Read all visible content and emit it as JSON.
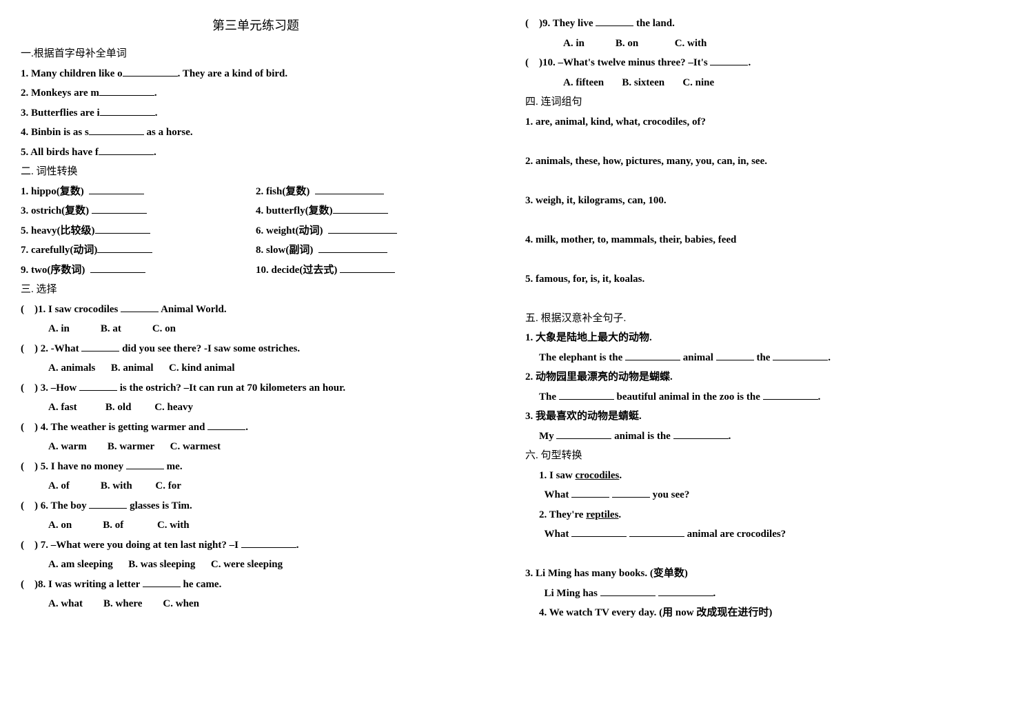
{
  "title": "第三单元练习题",
  "s1": {
    "heading": "一.根据首字母补全单词",
    "q1": {
      "pre": "1. Many children like o",
      "post": ". They are a kind of bird."
    },
    "q2": {
      "pre": "2. Monkeys are m",
      "post": "."
    },
    "q3": {
      "pre": "3. Butterflies are i",
      "post": "."
    },
    "q4": {
      "pre": "4. Binbin is as s",
      "post": " as a horse."
    },
    "q5": {
      "pre": "5. All birds have f",
      "post": "."
    }
  },
  "s2": {
    "heading": "二. 词性转换",
    "q1": "1. hippo(复数)",
    "q2": "2. fish(复数)",
    "q3": "3. ostrich(复数)",
    "q4": "4. butterfly(复数)",
    "q5": "5. heavy(比较级)",
    "q6": "6. weight(动词)",
    "q7": "7. carefully(动词)",
    "q8": "8. slow(副词)",
    "q9": "9. two(序数词)",
    "q10": "10. decide(过去式)"
  },
  "s3": {
    "heading": "三. 选择",
    "q1": {
      "stem_a": ")1. I saw crocodiles ",
      "stem_b": " Animal World.",
      "a": "A. in",
      "b": "B. at",
      "c": "C. on"
    },
    "q2": {
      "stem_a": ") 2. -What ",
      "stem_b": " did you see there? -I saw some ostriches.",
      "a": "A. animals",
      "b": "B. animal",
      "c": "C. kind animal"
    },
    "q3": {
      "stem_a": ") 3. –How ",
      "stem_b": " is the ostrich? –It can run at 70 kilometers an hour.",
      "a": "A. fast",
      "b": "B. old",
      "c": "C. heavy"
    },
    "q4": {
      "stem_a": ") 4. The weather is getting warmer and ",
      "stem_b": ".",
      "a": "A. warm",
      "b": "B. warmer",
      "c": "C. warmest"
    },
    "q5": {
      "stem_a": ") 5. I have no money ",
      "stem_b": " me.",
      "a": "A. of",
      "b": "B. with",
      "c": "C. for"
    },
    "q6": {
      "stem_a": ") 6. The boy ",
      "stem_b": " glasses is Tim.",
      "a": "A. on",
      "b": "B. of",
      "c": "C. with"
    },
    "q7": {
      "stem_a": ") 7. –What were you doing at ten last night? –I ",
      "stem_b": ".",
      "a": "A. am sleeping",
      "b": "B. was sleeping",
      "c": "C. were sleeping"
    },
    "q8": {
      "stem_a": ")8. I was writing a letter ",
      "stem_b": " he came.",
      "a": "A. what",
      "b": "B. where",
      "c": "C. when"
    },
    "q9": {
      "stem_a": ")9. They live ",
      "stem_b": " the land.",
      "a": "A. in",
      "b": "B. on",
      "c": "C. with"
    },
    "q10": {
      "stem_a": ")10. –What's twelve minus three? –It's ",
      "stem_b": ".",
      "a": "A. fifteen",
      "b": "B. sixteen",
      "c": "C. nine"
    }
  },
  "s4": {
    "heading": "四. 连词组句",
    "q1": "1. are,   animal,   kind,   what,   crocodiles,   of?",
    "q2": "2. animals,   these,   how,   pictures,   many,   you,   can,   in,   see.",
    "q3": "3. weigh,  it,   kilograms,   can,   100.",
    "q4": "4. milk,   mother,   to,   mammals,   their,   babies,   feed",
    "q5": "5. famous,   for,   is,   it,     koalas."
  },
  "s5": {
    "heading": "五. 根据汉意补全句子.",
    "q1cn": "1. 大象是陆地上最大的动物.",
    "q1en_a": "The elephant is the ",
    "q1en_b": " animal ",
    "q1en_c": " the ",
    "q1en_d": ".",
    "q2cn": "2. 动物园里最漂亮的动物是蝴蝶.",
    "q2en_a": "The ",
    "q2en_b": " beautiful animal in the zoo is the ",
    "q2en_c": ".",
    "q3cn": "3. 我最喜欢的动物是蜻蜓.",
    "q3en_a": "My ",
    "q3en_b": " animal is the ",
    "q3en_c": "."
  },
  "s6": {
    "heading": "六. 句型转换",
    "q1a": "1. I saw ",
    "q1u": "crocodiles",
    "q1b": ".",
    "q1ans_a": "What ",
    "q1ans_b": " you see?",
    "q2a": "2. They're ",
    "q2u": "reptiles",
    "q2b": ".",
    "q2ans_a": "What ",
    "q2ans_b": " animal are crocodiles?",
    "q3": "3. Li Ming has many books. (变单数)",
    "q3ans_a": "Li Ming has ",
    "q3ans_b": ".",
    "q4": "4. We watch TV every day. (用 now 改成现在进行时)"
  }
}
